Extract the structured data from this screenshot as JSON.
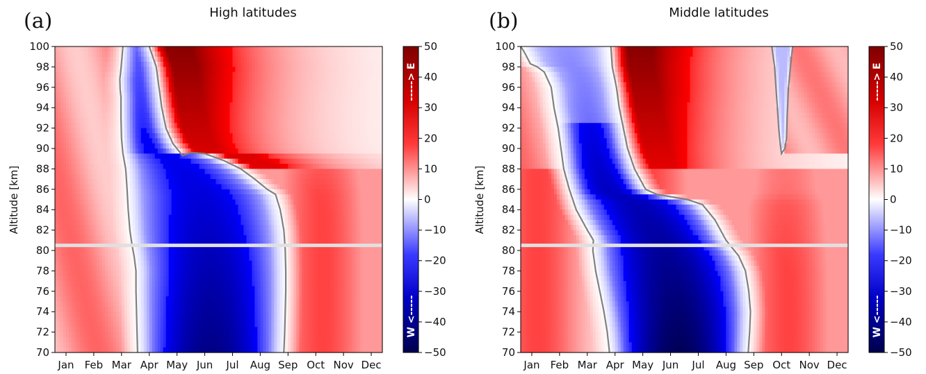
{
  "chart_data": [
    {
      "type": "heatmap",
      "panel_label": "(a)",
      "title": "High latitudes",
      "xlabel": "",
      "ylabel": "Altitude [km]",
      "x_ticks": [
        "Jan",
        "Feb",
        "Mar",
        "Apr",
        "May",
        "Jun",
        "Jul",
        "Aug",
        "Sep",
        "Oct",
        "Nov",
        "Dec"
      ],
      "y_ticks": [
        70,
        72,
        74,
        76,
        78,
        80,
        82,
        84,
        86,
        88,
        90,
        92,
        94,
        96,
        98,
        100
      ],
      "ylim": [
        70,
        100
      ],
      "x_range_months": [
        0.6,
        12.4
      ],
      "marker_altitude": 80.5,
      "z_unit_colormap": "seismic",
      "zlim": [
        -50,
        50
      ],
      "zero_contour": {
        "west_onset_month": [
          [
            70,
            3.58
          ],
          [
            72,
            3.56
          ],
          [
            74,
            3.54
          ],
          [
            76,
            3.52
          ],
          [
            78,
            3.52
          ],
          [
            79.5,
            3.45
          ],
          [
            80.5,
            3.38
          ],
          [
            82,
            3.3
          ],
          [
            84,
            3.24
          ],
          [
            86,
            3.2
          ],
          [
            88,
            3.15
          ],
          [
            89.5,
            3.05
          ],
          [
            91,
            3.0
          ],
          [
            93,
            2.98
          ],
          [
            95,
            2.98
          ],
          [
            95.8,
            2.95
          ],
          [
            96.8,
            2.94
          ],
          [
            97.8,
            2.98
          ],
          [
            99,
            3.02
          ],
          [
            100,
            3.05
          ]
        ],
        "east_onset_month": [
          [
            70,
            8.85
          ],
          [
            72,
            8.88
          ],
          [
            74,
            8.9
          ],
          [
            76,
            8.92
          ],
          [
            78,
            8.92
          ],
          [
            80,
            8.9
          ],
          [
            82,
            8.85
          ],
          [
            84,
            8.72
          ],
          [
            85.5,
            8.55
          ],
          [
            86,
            8.25
          ],
          [
            87,
            7.8
          ],
          [
            88,
            7.3
          ],
          [
            88.8,
            6.7
          ],
          [
            89.5,
            6.0
          ],
          [
            89.6,
            5.5
          ],
          [
            89.3,
            5.2
          ],
          [
            90.5,
            4.85
          ],
          [
            92,
            4.6
          ],
          [
            94,
            4.45
          ],
          [
            96,
            4.35
          ],
          [
            98,
            4.25
          ],
          [
            100,
            4.0
          ]
        ]
      },
      "approx_extremes": [
        {
          "month": 7.0,
          "altitude": 76,
          "value": -38
        },
        {
          "month": 7.5,
          "altitude": 97,
          "value": 44
        }
      ]
    },
    {
      "type": "heatmap",
      "panel_label": "(b)",
      "title": "Middle latitudes",
      "xlabel": "",
      "ylabel": "Altitude [km]",
      "x_ticks": [
        "Jan",
        "Feb",
        "Mar",
        "Apr",
        "May",
        "Jun",
        "Jul",
        "Aug",
        "Sep",
        "Oct",
        "Nov",
        "Dec"
      ],
      "y_ticks": [
        70,
        72,
        74,
        76,
        78,
        80,
        82,
        84,
        86,
        88,
        90,
        92,
        94,
        96,
        98,
        100
      ],
      "ylim": [
        70,
        100
      ],
      "x_range_months": [
        0.6,
        12.4
      ],
      "marker_altitude": 80.5,
      "z_unit_colormap": "seismic",
      "zlim": [
        -50,
        50
      ],
      "zero_contour": {
        "west_onset_month": [
          [
            70,
            3.8
          ],
          [
            72,
            3.72
          ],
          [
            74,
            3.6
          ],
          [
            76,
            3.45
          ],
          [
            78,
            3.3
          ],
          [
            80,
            3.2
          ],
          [
            81,
            3.22
          ],
          [
            82,
            3.0
          ],
          [
            84,
            2.6
          ],
          [
            86,
            2.35
          ],
          [
            88,
            2.15
          ],
          [
            90,
            2.05
          ],
          [
            92,
            1.95
          ],
          [
            94,
            1.8
          ],
          [
            96,
            1.7
          ],
          [
            97.5,
            1.45
          ],
          [
            98,
            1.2
          ],
          [
            98.3,
            0.95
          ],
          [
            99.5,
            0.72
          ],
          [
            100,
            0.6
          ]
        ],
        "east_onset_month": [
          [
            70,
            8.8
          ],
          [
            72,
            8.85
          ],
          [
            74,
            8.88
          ],
          [
            76,
            8.82
          ],
          [
            78,
            8.7
          ],
          [
            79.5,
            8.45
          ],
          [
            81,
            8.0
          ],
          [
            83,
            7.6
          ],
          [
            84.5,
            7.15
          ],
          [
            85,
            6.6
          ],
          [
            85.5,
            5.5
          ],
          [
            86,
            5.1
          ],
          [
            88,
            4.7
          ],
          [
            90,
            4.45
          ],
          [
            92,
            4.3
          ],
          [
            94,
            4.15
          ],
          [
            96,
            4.05
          ],
          [
            98,
            3.9
          ],
          [
            100,
            3.85
          ]
        ],
        "autumn_west_tongue_month": [
          [
            100,
            9.65
          ],
          [
            98,
            9.75
          ],
          [
            96,
            9.8
          ],
          [
            94,
            9.85
          ],
          [
            92,
            9.9
          ],
          [
            90.5,
            9.95
          ],
          [
            89.5,
            10.0
          ],
          [
            90,
            10.12
          ],
          [
            91,
            10.18
          ],
          [
            93,
            10.2
          ],
          [
            96,
            10.25
          ],
          [
            98,
            10.32
          ],
          [
            100,
            10.4
          ]
        ]
      },
      "approx_extremes": [
        {
          "month": 6.8,
          "altitude": 73,
          "value": -45
        },
        {
          "month": 7.0,
          "altitude": 96,
          "value": 46
        }
      ]
    }
  ],
  "colorbar": {
    "ticks": [
      50,
      40,
      30,
      20,
      10,
      0,
      -10,
      -20,
      -30,
      -40,
      -50
    ],
    "east_label": "-----> E",
    "west_label": "W <-----"
  },
  "colors": {
    "positive_max": "#67000d",
    "negative_max": "#00004c",
    "contour": "#808080",
    "marker_line": "#e0e0e0"
  }
}
